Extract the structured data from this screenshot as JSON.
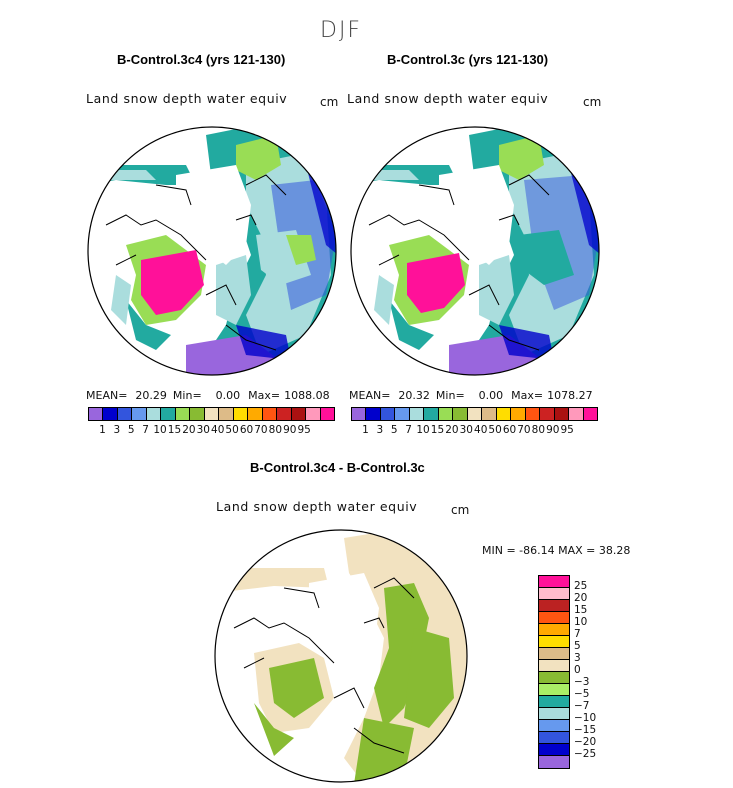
{
  "figure": {
    "season": "DJF"
  },
  "panels": [
    {
      "title": "B-Control.3c4 (yrs 121-130)",
      "variable": "Land snow depth water equiv",
      "units": "cm",
      "stats": {
        "mean_label": "MEAN=",
        "mean": "20.29",
        "min_label": "Min=",
        "min": "0.00",
        "max_label": "Max=",
        "max": "1088.08"
      }
    },
    {
      "title": "B-Control.3c (yrs 121-130)",
      "variable": "Land snow depth water equiv",
      "units": "cm",
      "stats": {
        "mean_label": "MEAN=",
        "mean": "20.32",
        "min_label": "Min=",
        "min": "0.00",
        "max_label": "Max=",
        "max": "1078.27"
      }
    }
  ],
  "diff_panel": {
    "title": "B-Control.3c4 - B-Control.3c",
    "variable": "Land snow depth water equiv",
    "units": "cm",
    "minmax": "MIN = -86.14  MAX =  38.28"
  },
  "colorbar_main": {
    "labels": [
      "1",
      "3",
      "5",
      "7",
      "10",
      "15",
      "20",
      "30",
      "40",
      "50",
      "60",
      "70",
      "80",
      "90",
      "95"
    ],
    "colors": [
      "#9966dd",
      "#0000cc",
      "#3355dd",
      "#6699ee",
      "#aadddd",
      "#22aaa0",
      "#99dd55",
      "#88bb33",
      "#f2e2c0",
      "#ddbb88",
      "#ffdd00",
      "#ffaa00",
      "#ff5511",
      "#cc2222",
      "#aa1111",
      "#ff99bb",
      "#ff1199"
    ]
  },
  "colorbar_diff": {
    "labels": [
      "25",
      "20",
      "15",
      "10",
      "7",
      "5",
      "3",
      "0",
      "−3",
      "−5",
      "−7",
      "−10",
      "−15",
      "−20",
      "−25"
    ],
    "colors": [
      "#ff1199",
      "#ffbbcc",
      "#bb2222",
      "#ff5511",
      "#ffaa00",
      "#ffdd00",
      "#ddbb88",
      "#f2e2c0",
      "#88bb33",
      "#aaee66",
      "#22aaa0",
      "#aadddd",
      "#6699ee",
      "#3355dd",
      "#0000cc",
      "#9966dd"
    ]
  },
  "colors": {
    "background": "#ffffff",
    "coast": "#000000"
  }
}
